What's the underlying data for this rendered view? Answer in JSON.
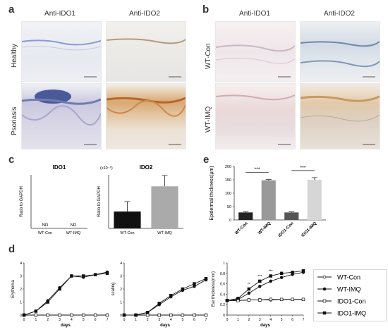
{
  "panels": {
    "a": {
      "letter": "a",
      "col_headers": [
        "Anti-IDO1",
        "Anti-IDO2"
      ],
      "row_labels": [
        "Healthy",
        "Psoriasis"
      ]
    },
    "b": {
      "letter": "b",
      "col_headers": [
        "Anti-IDO1",
        "Anti-IDO2"
      ],
      "row_labels": [
        "WT-Con",
        "WT-IMQ"
      ]
    },
    "c": {
      "letter": "c"
    },
    "d": {
      "letter": "d"
    },
    "e": {
      "letter": "e"
    }
  },
  "chart_data": [
    {
      "id": "c-ido1",
      "type": "bar",
      "title": "IDO1",
      "ylabel": "Ratio to GAPDH",
      "categories": [
        "WT-Con",
        "WT-IMQ"
      ],
      "annotations": [
        "ND",
        "ND"
      ]
    },
    {
      "id": "c-ido2",
      "type": "bar",
      "title": "IDO2",
      "ylabel": "Ratio to GAPDH",
      "scale_note": "(x10⁻⁵)",
      "categories": [
        "WT-Con",
        "WT-IMQ"
      ],
      "values": [
        2.2,
        5.5
      ],
      "errors": [
        1.3,
        1.4
      ],
      "colors": [
        "#111111",
        "#aaaaaa"
      ],
      "ylim": [
        0,
        7
      ]
    },
    {
      "id": "e",
      "type": "bar",
      "ylabel": "Epidermal thickness(μm)",
      "categories": [
        "WT-Con",
        "WT-IMQ",
        "IDO1-Con",
        "IDO1-IMQ"
      ],
      "values": [
        28,
        148,
        28,
        150
      ],
      "errors": [
        3,
        3,
        2,
        8
      ],
      "colors": [
        "#222222",
        "#999999",
        "#555555",
        "#d6d6d6"
      ],
      "ylim": [
        0,
        200
      ],
      "yticks": [
        0,
        50,
        100,
        150,
        200
      ],
      "significance": [
        {
          "from": 0,
          "to": 1,
          "label": "***"
        },
        {
          "from": 2,
          "to": 3,
          "label": "***"
        }
      ]
    },
    {
      "id": "d-erythema",
      "type": "line",
      "ylabel": "Erythema",
      "xlabel": "days",
      "x": [
        0,
        1,
        2,
        3,
        4,
        5,
        6,
        7
      ],
      "ylim": [
        0,
        4
      ],
      "yticks": [
        0,
        1,
        2,
        3,
        4
      ],
      "series": [
        {
          "name": "WT-Con",
          "values": [
            0,
            0,
            0,
            0,
            0,
            0,
            0,
            0
          ]
        },
        {
          "name": "WT-IMQ",
          "values": [
            0,
            0.3,
            1.1,
            2.1,
            3.0,
            2.9,
            3.1,
            3.3
          ]
        },
        {
          "name": "IDO1-Con",
          "values": [
            0,
            0,
            0,
            0,
            0,
            0,
            0,
            0
          ]
        },
        {
          "name": "IDO1-IMQ",
          "values": [
            0,
            0.3,
            1.0,
            2.0,
            3.0,
            3.0,
            3.1,
            3.2
          ]
        }
      ]
    },
    {
      "id": "d-scaling",
      "type": "line",
      "ylabel": "scaling",
      "xlabel": "days",
      "x": [
        0,
        1,
        2,
        3,
        4,
        5,
        6,
        7
      ],
      "ylim": [
        0,
        4
      ],
      "yticks": [
        0,
        1,
        2,
        3,
        4
      ],
      "series": [
        {
          "name": "WT-Con",
          "values": [
            0,
            0,
            0,
            0,
            0,
            0,
            0,
            0
          ]
        },
        {
          "name": "WT-IMQ",
          "values": [
            0,
            0,
            0.2,
            0.8,
            1.4,
            1.9,
            2.2,
            2.7
          ]
        },
        {
          "name": "IDO1-Con",
          "values": [
            0,
            0,
            0,
            0,
            0,
            0,
            0,
            0
          ]
        },
        {
          "name": "IDO1-IMQ",
          "values": [
            0,
            0,
            0.2,
            0.9,
            1.5,
            2.0,
            2.4,
            2.8
          ]
        }
      ]
    },
    {
      "id": "d-ear",
      "type": "line",
      "ylabel": "Ear thickness(mm)",
      "xlabel": "days",
      "x": [
        0,
        1,
        2,
        3,
        4,
        5,
        6,
        7
      ],
      "ylim": [
        0,
        1.0
      ],
      "yticks": [
        0,
        0.2,
        0.4,
        0.6,
        0.8,
        1.0
      ],
      "series": [
        {
          "name": "WT-Con",
          "values": [
            0.28,
            0.28,
            0.29,
            0.29,
            0.29,
            0.3,
            0.3,
            0.3
          ]
        },
        {
          "name": "WT-IMQ",
          "values": [
            0.28,
            0.3,
            0.42,
            0.55,
            0.65,
            0.72,
            0.78,
            0.82
          ]
        },
        {
          "name": "IDO1-Con",
          "values": [
            0.28,
            0.28,
            0.29,
            0.29,
            0.3,
            0.3,
            0.3,
            0.3
          ]
        },
        {
          "name": "IDO1-IMQ",
          "values": [
            0.28,
            0.32,
            0.5,
            0.65,
            0.75,
            0.8,
            0.82,
            0.85
          ]
        }
      ],
      "significance_labels": [
        {
          "x": 2,
          "label": "**"
        },
        {
          "x": 3,
          "label": "***"
        },
        {
          "x": 4,
          "label": "***"
        }
      ]
    }
  ],
  "legend": {
    "items": [
      {
        "name": "WT-Con",
        "marker": "circle-open"
      },
      {
        "name": "WT-IMQ",
        "marker": "circle-filled"
      },
      {
        "name": "IDO1-Con",
        "marker": "square-open"
      },
      {
        "name": "IDO1-IMQ",
        "marker": "square-filled"
      }
    ]
  }
}
